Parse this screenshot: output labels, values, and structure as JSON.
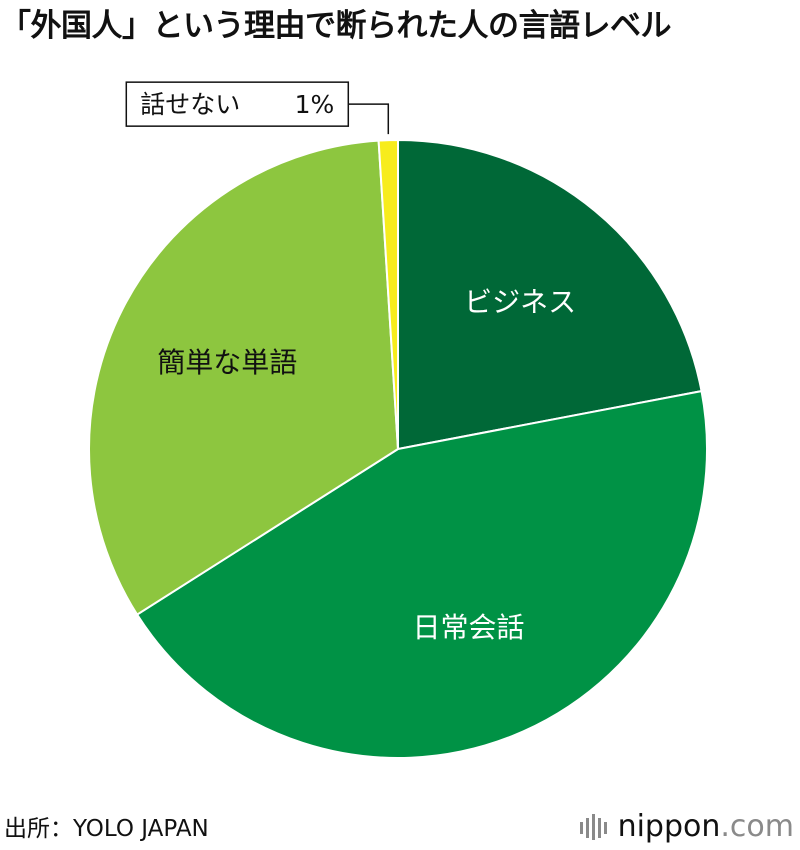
{
  "title": "「外国人」という理由で断られた人の言語レベル",
  "chart_data": {
    "type": "pie",
    "title": "「外国人」という理由で断られた人の言語レベル",
    "start_angle_deg": 0,
    "direction": "clockwise",
    "slices": [
      {
        "label": "ビジネス",
        "value": 22,
        "color": "#006837",
        "label_color": "#ffffff",
        "label_style": "inside"
      },
      {
        "label": "日常会話",
        "value": 44,
        "color": "#009245",
        "label_color": "#ffffff",
        "label_style": "inside"
      },
      {
        "label": "簡単な単語",
        "value": 33,
        "color": "#8dc63f",
        "label_color": "#111111",
        "label_style": "inside"
      },
      {
        "label": "話せない",
        "value": 1,
        "value_text": "1%",
        "color": "#f7ec1d",
        "label_color": "#111111",
        "label_style": "callout"
      }
    ]
  },
  "source": "出所：YOLO JAPAN",
  "brand": {
    "name": "nippon",
    "tld": ".com"
  }
}
